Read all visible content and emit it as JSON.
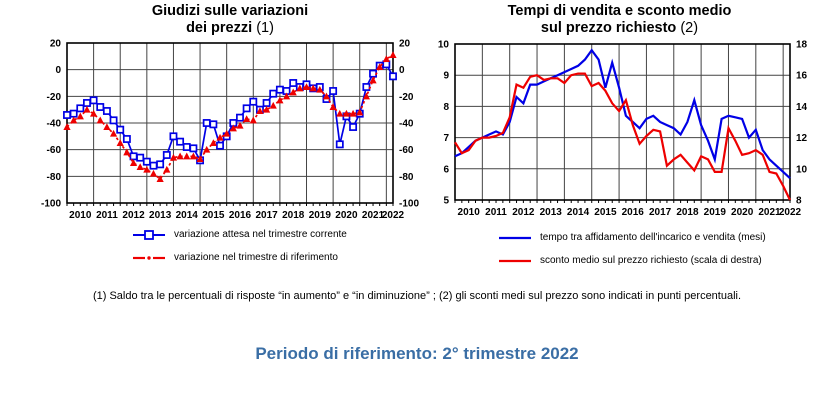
{
  "page": {
    "footnote": "(1) Saldo tra le percentuali di risposte “in aumento” e “in diminuzione” ; (2) gli sconti medi sul prezzo sono indicati in punti percentuali.",
    "reference_period": "Periodo di riferimento: 2° trimestre 2022",
    "accent_color": "#3A6EA5",
    "grid_color": "#444444",
    "axis_color": "#000000"
  },
  "charts": {
    "left": {
      "title_line1": "Giudizi sulle variazioni",
      "title_line2": "dei prezzi",
      "title_ref": "(1)"
    },
    "right": {
      "title_line1": "Tempi di vendita e sconto medio",
      "title_line2": "sul prezzo richiesto",
      "title_ref": "(2)"
    }
  },
  "chart_data": [
    {
      "type": "line",
      "title": "Giudizi sulle variazioni dei prezzi (1)",
      "x_unit": "quarter",
      "x_start": "2010 Q1",
      "x_end": "2022 Q2",
      "x_year_labels": [
        "2010",
        "2011",
        "2012",
        "2013",
        "2014",
        "2015",
        "2016",
        "2017",
        "2018",
        "2019",
        "2020",
        "2021",
        "2022"
      ],
      "ylim": [
        -100,
        20
      ],
      "yticks": [
        20,
        0,
        -20,
        -40,
        -60,
        -80,
        -100
      ],
      "yticks_right_mirror": [
        20,
        0,
        -20,
        -40,
        -60,
        -80,
        -100
      ],
      "grid": true,
      "legend_position": "below",
      "series": [
        {
          "name": "variazione attesa nel trimestre corrente",
          "color": "#0000E6",
          "marker": "square",
          "line": "solid",
          "values": [
            -34,
            -33,
            -29,
            -25,
            -23,
            -28,
            -31,
            -38,
            -45,
            -52,
            -65,
            -66,
            -69,
            -72,
            -71,
            -64,
            -50,
            -54,
            -58,
            -59,
            -68,
            -40,
            -41,
            -57,
            -50,
            -40,
            -36,
            -29,
            -24,
            -30,
            -25,
            -18,
            -15,
            -16,
            -10,
            -13,
            -11,
            -14,
            -13,
            -22,
            -16,
            -56,
            -35,
            -43,
            -33,
            -13,
            -3,
            3,
            4,
            -5
          ]
        },
        {
          "name": "variazione nel trimestre di riferimento",
          "color": "#EE0000",
          "marker": "triangle",
          "line": "dotted",
          "values": [
            -43,
            -38,
            -35,
            -30,
            -33,
            -38,
            -43,
            -48,
            -55,
            -62,
            -70,
            -73,
            -75,
            -78,
            -82,
            -75,
            -66,
            -65,
            -65,
            -65,
            -67,
            -60,
            -55,
            -51,
            -48,
            -44,
            -42,
            -37,
            -38,
            -31,
            -30,
            -27,
            -23,
            -20,
            -17,
            -14,
            -13,
            -14,
            -15,
            -20,
            -28,
            -33,
            -33,
            -33,
            -32,
            -20,
            -8,
            2,
            8,
            11
          ]
        }
      ]
    },
    {
      "type": "line",
      "title": "Tempi di vendita e sconto medio sul prezzo richiesto (2)",
      "x_unit": "quarter",
      "x_start": "2010 Q1",
      "x_end": "2022 Q2",
      "x_year_labels": [
        "2010",
        "2011",
        "2012",
        "2013",
        "2014",
        "2015",
        "2016",
        "2017",
        "2018",
        "2019",
        "2020",
        "2021",
        "2022"
      ],
      "ylim_left": [
        5,
        10
      ],
      "yticks_left": [
        10,
        9,
        8,
        7,
        6,
        5
      ],
      "ylim_right": [
        8,
        18
      ],
      "yticks_right": [
        18,
        16,
        14,
        12,
        10,
        8
      ],
      "grid": true,
      "legend_position": "below",
      "series": [
        {
          "name": "tempo tra affidamento dell'incarico e vendita (mesi)",
          "axis": "left",
          "color": "#0000E6",
          "marker": "none",
          "line": "solid",
          "values": [
            6.4,
            6.5,
            6.7,
            6.9,
            7.0,
            7.1,
            7.2,
            7.1,
            7.5,
            8.3,
            8.1,
            8.7,
            8.7,
            8.8,
            8.9,
            9.0,
            9.1,
            9.2,
            9.3,
            9.5,
            9.8,
            9.5,
            8.6,
            9.4,
            8.6,
            7.7,
            7.5,
            7.3,
            7.6,
            7.7,
            7.5,
            7.4,
            7.3,
            7.1,
            7.5,
            8.2,
            7.4,
            6.9,
            6.3,
            7.6,
            7.7,
            7.65,
            7.6,
            7.0,
            7.25,
            6.6,
            6.3,
            6.1,
            5.9,
            5.7
          ]
        },
        {
          "name": "sconto medio sul prezzo richiesto (scala di destra)",
          "axis": "right",
          "color": "#EE0000",
          "marker": "none",
          "line": "solid",
          "values": [
            11.7,
            11.0,
            11.2,
            11.8,
            12.0,
            12.0,
            12.1,
            12.3,
            13.3,
            15.4,
            15.2,
            15.9,
            16.0,
            15.7,
            15.8,
            15.8,
            15.5,
            16.0,
            16.1,
            16.1,
            15.3,
            15.5,
            15.0,
            14.2,
            13.7,
            14.4,
            12.8,
            11.6,
            12.1,
            12.5,
            12.4,
            10.2,
            10.6,
            10.9,
            10.4,
            9.9,
            10.8,
            10.6,
            9.8,
            9.8,
            12.6,
            11.8,
            10.9,
            11.0,
            11.2,
            10.9,
            9.8,
            9.7,
            8.9,
            8.0
          ]
        }
      ]
    }
  ]
}
